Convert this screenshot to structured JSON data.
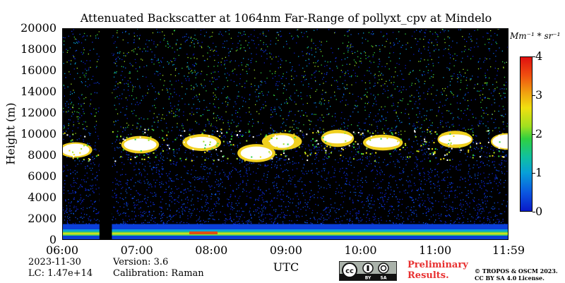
{
  "chart_data": {
    "type": "heatmap",
    "title": "Attenuated Backscatter at 1064nm Far-Range of pollyxt_cpv at Mindelo",
    "xlabel": "UTC",
    "ylabel": "Height (m)",
    "x_range": [
      "06:00",
      "11:59"
    ],
    "ylim": [
      0,
      20000
    ],
    "x_tick_labels": [
      "06:00",
      "07:00",
      "08:00",
      "09:00",
      "10:00",
      "11:00",
      "11:59"
    ],
    "y_tick_labels": [
      "0",
      "2000",
      "4000",
      "6000",
      "8000",
      "10000",
      "12000",
      "14000",
      "16000",
      "18000",
      "20000"
    ],
    "colorbar": {
      "unit": "Mm⁻¹ * sr⁻¹",
      "ticks": [
        "0",
        "1",
        "2",
        "3",
        "4"
      ],
      "range": [
        0,
        4
      ]
    },
    "features": {
      "boundary_layer_top_m": 1500,
      "cloud_layer_m": [
        7500,
        10500
      ],
      "data_gap_utc": [
        "06:30",
        "06:40"
      ]
    }
  },
  "meta": {
    "date": "2023-11-30",
    "lc": "LC: 1.47e+14",
    "version": "Version: 3.6",
    "calibration": "Calibration: Raman",
    "preliminary_line1": "Preliminary",
    "preliminary_line2": "Results.",
    "copyright_line1": "© TROPOS & OSCM 2023.",
    "copyright_line2": "CC BY SA 4.0 License.",
    "license_badge": "cc BY SA"
  },
  "colors": {
    "background_signal": "#000000",
    "low_signal": "#0a1ac8",
    "cloud": "#ffffff",
    "preliminary": "#e83030"
  }
}
